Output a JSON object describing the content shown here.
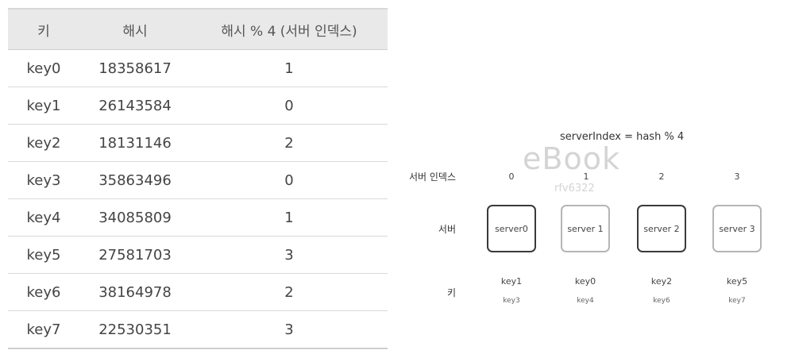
{
  "table": {
    "headers": [
      "키",
      "해시",
      "해시 % 4 (서버 인덱스)"
    ],
    "rows": [
      [
        "key0",
        "18358617",
        "1"
      ],
      [
        "key1",
        "26143584",
        "0"
      ],
      [
        "key2",
        "18131146",
        "2"
      ],
      [
        "key3",
        "35863496",
        "0"
      ],
      [
        "key4",
        "34085809",
        "1"
      ],
      [
        "key5",
        "27581703",
        "3"
      ],
      [
        "key6",
        "38164978",
        "2"
      ],
      [
        "key7",
        "22530351",
        "3"
      ]
    ]
  },
  "diagram": {
    "formula": "serverIndex = hash % 4",
    "watermark_line1": "eBook",
    "watermark_line2": "rfv6322",
    "label_index": "서버 인덱스",
    "label_server": "서버",
    "label_key": "키",
    "servers": [
      {
        "index": "0",
        "name": "server0",
        "key_a": "key1",
        "key_b": "key3"
      },
      {
        "index": "1",
        "name": "server 1",
        "key_a": "key0",
        "key_b": "key4"
      },
      {
        "index": "2",
        "name": "server 2",
        "key_a": "key2",
        "key_b": "key6"
      },
      {
        "index": "3",
        "name": "server 3",
        "key_a": "key5",
        "key_b": "key7"
      }
    ]
  }
}
